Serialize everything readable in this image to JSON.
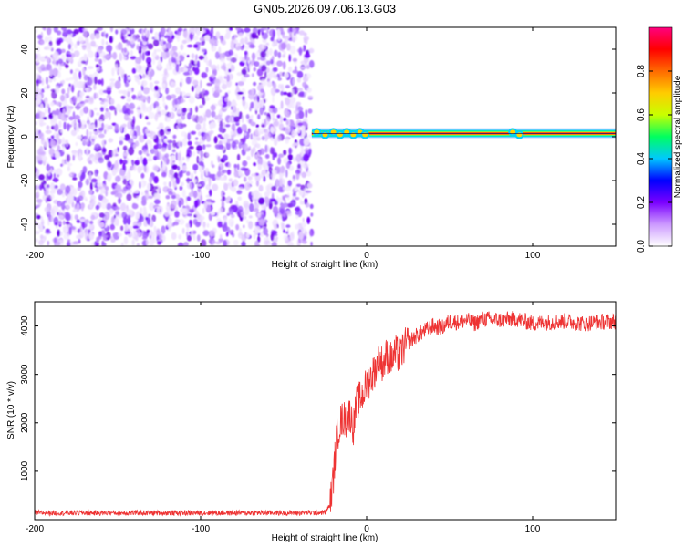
{
  "title": "GN05.2026.097.06.13.G03",
  "chart_data": [
    {
      "type": "heatmap",
      "panel": "spectrogram",
      "xlabel": "Height of straight line (km)",
      "ylabel": "Frequency (Hz)",
      "xlim": [
        -200,
        150
      ],
      "ylim": [
        -50,
        50
      ],
      "xticks": [
        -200,
        -100,
        0,
        100
      ],
      "xtick_labels": [
        "-200",
        "-100",
        "0",
        "100"
      ],
      "yticks": [
        -40,
        -20,
        0,
        20,
        40
      ],
      "ytick_labels": [
        "-40",
        "-20",
        "0",
        "20",
        "40"
      ],
      "noise_region_x": [
        -200,
        -33
      ],
      "signal_region_x": [
        -33,
        150
      ],
      "signal_frequency_hz": 1.5,
      "colorbar": {
        "label": "Normalized spectral amplitude",
        "range": [
          0,
          1
        ],
        "ticks": [
          0,
          0.2,
          0.4,
          0.6,
          0.8
        ],
        "tick_labels": [
          "0.0",
          "0.2",
          "0.4",
          "0.6",
          "0.8"
        ],
        "colors": [
          "#ffffff",
          "#cc99ff",
          "#7a00ff",
          "#0000ff",
          "#00c8ff",
          "#00ff60",
          "#c8ff00",
          "#ffcc00",
          "#ff6a00",
          "#ff0000",
          "#ff0080"
        ]
      }
    },
    {
      "type": "line",
      "panel": "snr",
      "xlabel": "Height of straight line (km)",
      "ylabel": "SNR (10 * v/v)",
      "xlim": [
        -200,
        150
      ],
      "ylim": [
        0,
        4500
      ],
      "xticks": [
        -200,
        -100,
        0,
        100
      ],
      "xtick_labels": [
        "-200",
        "-100",
        "0",
        "100"
      ],
      "yticks": [
        1000,
        2000,
        3000,
        4000
      ],
      "ytick_labels": [
        "1000",
        "2000",
        "3000",
        "4000"
      ],
      "color": "#ee3333",
      "series": [
        {
          "name": "SNR",
          "x": [
            -200,
            -180,
            -160,
            -140,
            -120,
            -100,
            -80,
            -60,
            -40,
            -25,
            -22,
            -20,
            -18,
            -16,
            -14,
            -12,
            -10,
            -8,
            -6,
            -4,
            -2,
            0,
            2,
            5,
            8,
            10,
            12,
            15,
            18,
            20,
            22,
            25,
            30,
            35,
            40,
            45,
            50,
            55,
            60,
            65,
            70,
            80,
            90,
            100,
            110,
            120,
            130,
            140,
            150
          ],
          "y": [
            140,
            140,
            140,
            140,
            140,
            140,
            140,
            140,
            140,
            150,
            300,
            900,
            1700,
            2000,
            2100,
            2050,
            2200,
            1900,
            2400,
            2500,
            2600,
            2800,
            2900,
            3100,
            3300,
            3200,
            3400,
            3300,
            3450,
            3350,
            3550,
            3650,
            3800,
            3900,
            4000,
            3950,
            4100,
            4080,
            4120,
            4050,
            4150,
            4120,
            4150,
            4050,
            4080,
            4100,
            4050,
            4080,
            4100
          ]
        }
      ]
    }
  ]
}
